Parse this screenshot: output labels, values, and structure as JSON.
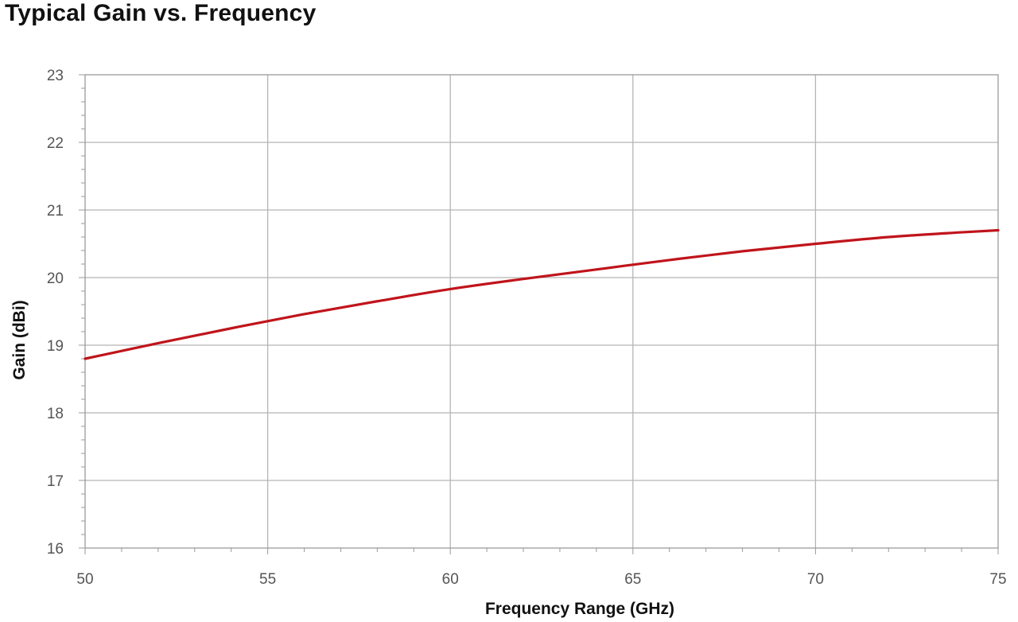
{
  "chart_data": {
    "type": "line",
    "title": "Typical Gain vs. Frequency",
    "xlabel": "Frequency Range (GHz)",
    "ylabel": "Gain (dBi)",
    "xlim": [
      50,
      75
    ],
    "ylim": [
      16,
      23
    ],
    "x_ticks": [
      "50",
      "55",
      "60",
      "65",
      "70",
      "75"
    ],
    "y_ticks": [
      "16",
      "17",
      "18",
      "19",
      "20",
      "21",
      "22",
      "23"
    ],
    "grid": true,
    "series": [
      {
        "color": "#c0141b",
        "x": [
          50,
          52,
          54,
          56,
          58,
          60,
          62,
          64,
          66,
          68,
          70,
          72,
          74,
          75
        ],
        "y": [
          18.8,
          19.03,
          19.25,
          19.46,
          19.65,
          19.83,
          19.98,
          20.12,
          20.26,
          20.39,
          20.5,
          20.6,
          20.67,
          20.7
        ]
      }
    ]
  },
  "colors": {
    "grid": "#b5b5b5",
    "axis": "#9a9a9a",
    "line": "#c0141b"
  }
}
